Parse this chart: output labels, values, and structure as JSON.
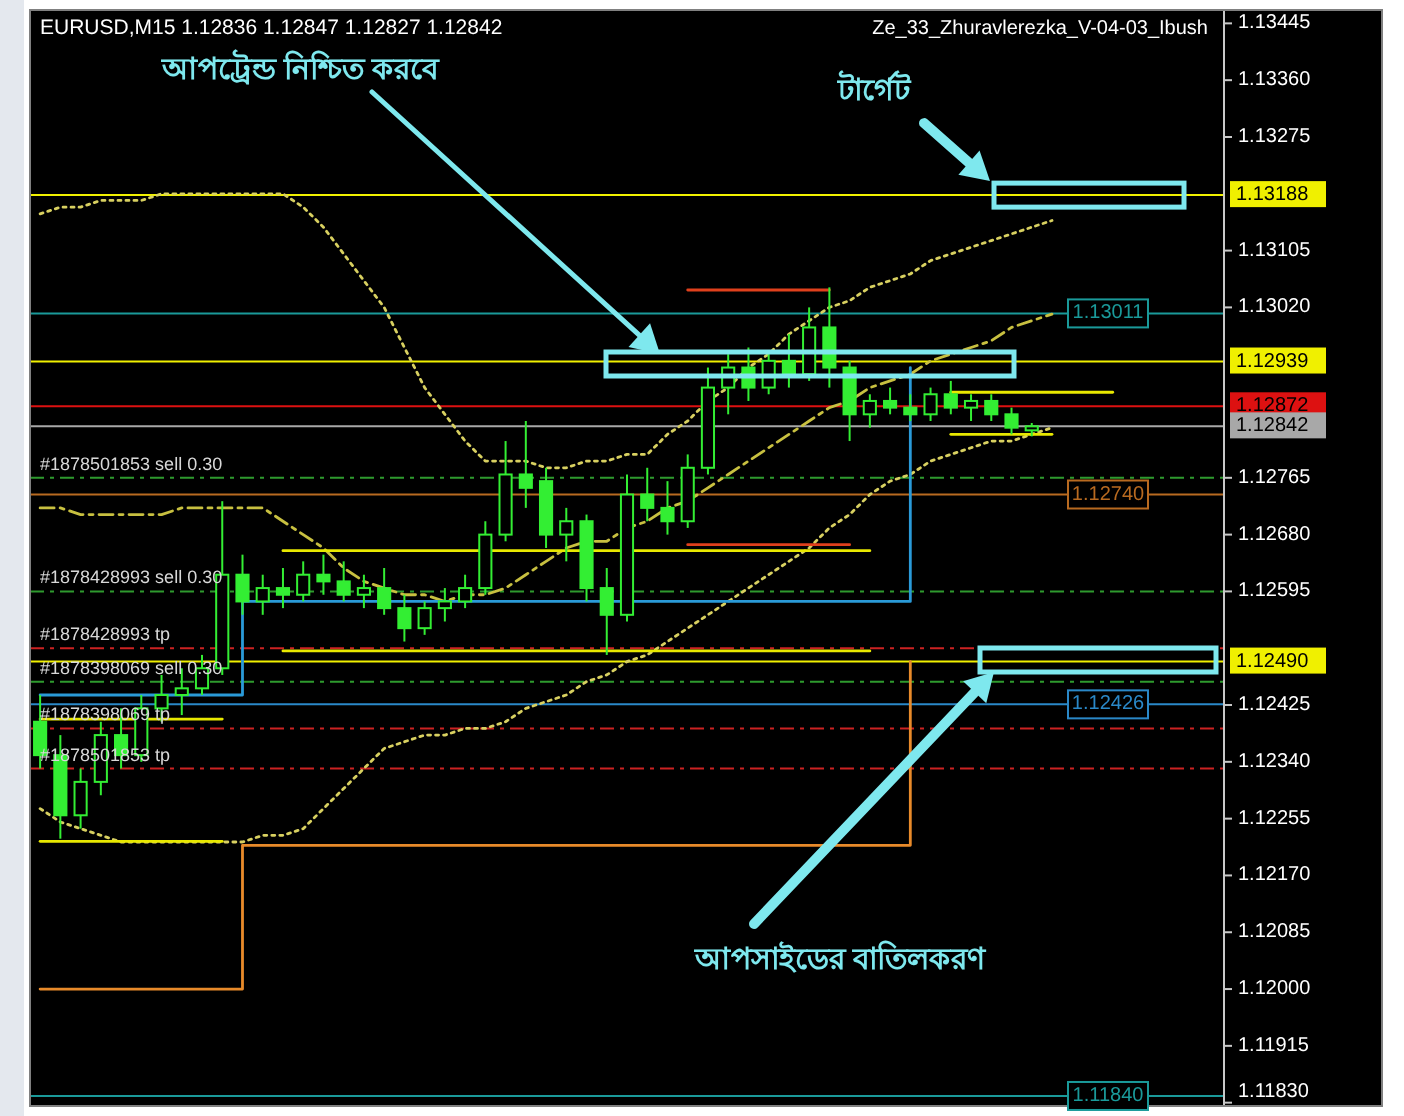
{
  "chart_data": {
    "type": "candlestick",
    "title": "EURUSD,M15  1.12836 1.12847 1.12827 1.12842",
    "categories": [
      null,
      null,
      null,
      null,
      null,
      null,
      null,
      null,
      null,
      null,
      null,
      null,
      null,
      null,
      null,
      null,
      null,
      null,
      null,
      null,
      null,
      null,
      null,
      null,
      null,
      null,
      null,
      null,
      null,
      null,
      null,
      null,
      null,
      null,
      null,
      null,
      null,
      null,
      null,
      null,
      null,
      null,
      null,
      null,
      null,
      null,
      null,
      null,
      null,
      null,
      null,
      null,
      null,
      null,
      null,
      null,
      null,
      null,
      null
    ],
    "ylim": [
      1.11825,
      1.13465
    ],
    "yticks": [
      {
        "value": 1.13445,
        "label": "1.13445"
      },
      {
        "value": 1.1336,
        "label": "1.13360"
      },
      {
        "value": 1.13275,
        "label": "1.13275"
      },
      {
        "value": 1.13105,
        "label": "1.13105"
      },
      {
        "value": 1.1302,
        "label": "1.13020"
      },
      {
        "value": 1.12765,
        "label": "1.12765"
      },
      {
        "value": 1.1268,
        "label": "1.12680"
      },
      {
        "value": 1.12595,
        "label": "1.12595"
      },
      {
        "value": 1.12425,
        "label": "1.12425"
      },
      {
        "value": 1.1234,
        "label": "1.12340"
      },
      {
        "value": 1.12255,
        "label": "1.12255"
      },
      {
        "value": 1.1217,
        "label": "1.12170"
      },
      {
        "value": 1.12085,
        "label": "1.12085"
      },
      {
        "value": 1.12,
        "label": "1.12000"
      },
      {
        "value": 1.11915,
        "label": "1.11915"
      },
      {
        "value": 1.1183,
        "label": "1.11830"
      }
    ],
    "tick_labels": "y",
    "grid": false,
    "series": [
      {
        "type": "candlestick",
        "color": "#33ee33",
        "ohlc": [
          [
            1.124,
            1.1244,
            1.1233,
            1.1235
          ],
          [
            1.1235,
            1.1238,
            1.12225,
            1.1226
          ],
          [
            1.1226,
            1.1233,
            1.1224,
            1.1231
          ],
          [
            1.1231,
            1.124,
            1.1229,
            1.1238
          ],
          [
            1.1238,
            1.1242,
            1.1233,
            1.1235
          ],
          [
            1.1235,
            1.1244,
            1.1234,
            1.1242
          ],
          [
            1.1242,
            1.1247,
            1.124,
            1.1244
          ],
          [
            1.1244,
            1.1248,
            1.1241,
            1.1245
          ],
          [
            1.1245,
            1.125,
            1.1244,
            1.1248
          ],
          [
            1.1248,
            1.1273,
            1.1247,
            1.1262
          ],
          [
            1.1262,
            1.1265,
            1.1256,
            1.1258
          ],
          [
            1.1258,
            1.1262,
            1.1256,
            1.126
          ],
          [
            1.126,
            1.1263,
            1.1257,
            1.1259
          ],
          [
            1.1259,
            1.1264,
            1.1258,
            1.1262
          ],
          [
            1.1262,
            1.1265,
            1.1259,
            1.1261
          ],
          [
            1.1261,
            1.1264,
            1.1258,
            1.1259
          ],
          [
            1.1259,
            1.1262,
            1.1257,
            1.126
          ],
          [
            1.126,
            1.1263,
            1.1256,
            1.1257
          ],
          [
            1.1257,
            1.1259,
            1.1252,
            1.1254
          ],
          [
            1.1254,
            1.1258,
            1.1253,
            1.1257
          ],
          [
            1.1257,
            1.126,
            1.1255,
            1.1258
          ],
          [
            1.1258,
            1.1262,
            1.1257,
            1.126
          ],
          [
            1.126,
            1.127,
            1.1259,
            1.1268
          ],
          [
            1.1268,
            1.1282,
            1.1267,
            1.1277
          ],
          [
            1.1277,
            1.1285,
            1.1272,
            1.1275
          ],
          [
            1.1276,
            1.1278,
            1.1266,
            1.1268
          ],
          [
            1.1268,
            1.1272,
            1.1264,
            1.127
          ],
          [
            1.127,
            1.1271,
            1.1258,
            1.126
          ],
          [
            1.126,
            1.1263,
            1.125,
            1.1256
          ],
          [
            1.1256,
            1.1277,
            1.1255,
            1.1274
          ],
          [
            1.1274,
            1.1278,
            1.127,
            1.1272
          ],
          [
            1.1272,
            1.1276,
            1.1268,
            1.127
          ],
          [
            1.127,
            1.128,
            1.1269,
            1.1278
          ],
          [
            1.1278,
            1.1293,
            1.1277,
            1.129
          ],
          [
            1.129,
            1.1295,
            1.1286,
            1.1293
          ],
          [
            1.1293,
            1.1296,
            1.1288,
            1.129
          ],
          [
            1.129,
            1.1295,
            1.1289,
            1.1294
          ],
          [
            1.1294,
            1.1298,
            1.129,
            1.1292
          ],
          [
            1.1292,
            1.1302,
            1.1291,
            1.1299
          ],
          [
            1.1299,
            1.1305,
            1.129,
            1.1293
          ],
          [
            1.1293,
            1.1294,
            1.1282,
            1.1286
          ],
          [
            1.1286,
            1.1289,
            1.1284,
            1.1288
          ],
          [
            1.1288,
            1.129,
            1.1286,
            1.1287
          ],
          [
            1.1287,
            1.1289,
            1.1285,
            1.1286
          ],
          [
            1.1286,
            1.129,
            1.1285,
            1.1289
          ],
          [
            1.1289,
            1.1291,
            1.1286,
            1.1287
          ],
          [
            1.1287,
            1.1289,
            1.1285,
            1.1288
          ],
          [
            1.1288,
            1.1289,
            1.1285,
            1.1286
          ],
          [
            1.1286,
            1.1287,
            1.1283,
            1.1284
          ],
          [
            1.12836,
            1.12847,
            1.12827,
            1.12842
          ],
          null,
          null,
          null,
          null,
          null,
          null,
          null,
          null,
          null
        ]
      },
      {
        "type": "line",
        "color": "#d8d060",
        "line_style": "dotted",
        "values": [
          1.1316,
          1.1317,
          1.1317,
          1.1318,
          1.1318,
          1.1318,
          1.1319,
          1.1319,
          1.1319,
          1.1319,
          1.1319,
          1.1319,
          1.1319,
          1.1317,
          1.1314,
          1.131,
          1.1306,
          1.1302,
          1.1296,
          1.129,
          1.1286,
          1.1282,
          1.1279,
          1.1279,
          1.1279,
          1.1278,
          1.1278,
          1.1279,
          1.1279,
          1.128,
          1.128,
          1.1283,
          1.1285,
          1.1288,
          1.129,
          1.1293,
          1.1295,
          1.1298,
          1.13,
          1.1302,
          1.1303,
          1.1305,
          1.1306,
          1.1307,
          1.1309,
          1.131,
          1.1311,
          1.1312,
          1.1313,
          1.1314,
          1.1315,
          null,
          null,
          null,
          null,
          null,
          null,
          null,
          null
        ]
      },
      {
        "type": "line",
        "color": "#c8c040",
        "line_style": "dashed",
        "values": [
          1.1272,
          1.1272,
          1.1271,
          1.1271,
          1.1271,
          1.1271,
          1.1271,
          1.1272,
          1.1272,
          1.1272,
          1.1272,
          1.1272,
          1.127,
          1.1268,
          1.1266,
          1.1263,
          1.1261,
          1.126,
          1.1259,
          1.1259,
          1.1258,
          1.1259,
          1.1259,
          1.126,
          1.1262,
          1.1264,
          1.1266,
          1.1267,
          1.1267,
          1.1269,
          1.127,
          1.1272,
          1.1273,
          1.1275,
          1.1277,
          1.1279,
          1.1281,
          1.1283,
          1.1285,
          1.1287,
          1.1288,
          1.129,
          1.1291,
          1.1292,
          1.1294,
          1.1295,
          1.1296,
          1.1297,
          1.1299,
          1.13,
          1.1301,
          null,
          null,
          null,
          null,
          null,
          null,
          null,
          null
        ]
      },
      {
        "type": "line",
        "color": "#d8d060",
        "line_style": "dotted",
        "values": [
          1.1227,
          1.1225,
          1.1224,
          1.1223,
          1.1222,
          1.1222,
          1.1222,
          1.1222,
          1.1222,
          1.1222,
          1.1222,
          1.1223,
          1.1223,
          1.1224,
          1.1227,
          1.123,
          1.1233,
          1.1236,
          1.1237,
          1.1238,
          1.1238,
          1.1239,
          1.1239,
          1.124,
          1.1242,
          1.1243,
          1.1244,
          1.1246,
          1.1247,
          1.1249,
          1.125,
          1.1252,
          1.1254,
          1.1256,
          1.1258,
          1.126,
          1.1262,
          1.1264,
          1.1266,
          1.1269,
          1.1271,
          1.1274,
          1.1276,
          1.1277,
          1.1279,
          1.128,
          1.1281,
          1.1282,
          1.1282,
          1.1283,
          1.1284,
          null,
          null,
          null,
          null,
          null,
          null,
          null,
          null
        ]
      },
      {
        "type": "step",
        "color": "#e88a2a",
        "values": [
          1.12,
          1.12,
          1.12,
          1.12,
          1.12,
          1.12,
          1.12,
          1.12,
          1.12,
          1.12,
          1.12215,
          1.12215,
          1.12215,
          1.12215,
          1.12215,
          1.12215,
          1.12215,
          1.12215,
          1.12215,
          1.12215,
          1.12215,
          1.12215,
          1.12215,
          1.12215,
          1.12215,
          1.12215,
          1.12215,
          1.12215,
          1.12215,
          1.12215,
          1.12215,
          1.12215,
          1.12215,
          1.12215,
          1.12215,
          1.12215,
          1.12215,
          1.12215,
          1.12215,
          1.12215,
          1.12215,
          1.12215,
          1.12215,
          1.1249,
          null,
          null,
          null,
          null,
          null,
          null,
          null,
          null,
          null,
          null,
          null,
          null,
          null,
          null,
          null
        ]
      },
      {
        "type": "step",
        "color": "#2a9ad8",
        "values": [
          1.1244,
          1.1244,
          1.1244,
          1.1244,
          1.1244,
          1.1244,
          1.1244,
          1.1244,
          1.1244,
          1.1244,
          1.1258,
          1.1258,
          1.1258,
          1.1258,
          1.1258,
          1.1258,
          1.1258,
          1.1258,
          1.1258,
          1.1258,
          1.1258,
          1.1258,
          1.1258,
          1.1258,
          1.1258,
          1.1258,
          1.1258,
          1.1258,
          1.1258,
          1.1258,
          1.1258,
          1.1258,
          1.1258,
          1.1258,
          1.1258,
          1.1258,
          1.1258,
          1.1258,
          1.1258,
          1.1258,
          1.1258,
          1.1258,
          1.1258,
          1.1293,
          null,
          null,
          null,
          null,
          null,
          null,
          null,
          null,
          null,
          null,
          null,
          null,
          null,
          null,
          null
        ]
      },
      {
        "type": "line",
        "color": "#e8e800",
        "values": [
          null,
          null,
          null,
          null,
          null,
          null,
          null,
          null,
          null,
          null,
          null,
          null,
          1.12656,
          1.12656,
          1.12656,
          1.12656,
          1.12656,
          1.12656,
          1.12656,
          1.12656,
          1.12656,
          1.12656,
          1.12656,
          1.12656,
          1.12656,
          1.12656,
          1.12656,
          1.12656,
          1.12656,
          1.12656,
          1.12656,
          1.12656,
          1.12656,
          1.12656,
          1.12656,
          1.12656,
          1.12656,
          1.12656,
          1.12656,
          1.12656,
          1.12656,
          1.12656,
          null,
          null,
          null,
          null,
          null,
          null,
          null,
          null,
          null,
          null,
          null,
          null,
          null,
          null,
          null,
          null,
          null
        ]
      },
      {
        "type": "line",
        "color": "#e8e800",
        "values": [
          null,
          null,
          null,
          null,
          null,
          null,
          null,
          null,
          null,
          null,
          null,
          null,
          1.12506,
          1.12506,
          1.12506,
          1.12506,
          1.12506,
          1.12506,
          1.12506,
          1.12506,
          1.12506,
          1.12506,
          1.12506,
          1.12506,
          1.12506,
          1.12506,
          1.12506,
          1.12506,
          1.12506,
          1.12506,
          1.12506,
          1.12506,
          1.12506,
          1.12506,
          1.12506,
          1.12506,
          1.12506,
          1.12506,
          1.12506,
          1.12506,
          1.12506,
          1.12506,
          null,
          null,
          null,
          null,
          null,
          null,
          null,
          null,
          null,
          null,
          null,
          null,
          null,
          null,
          null,
          null,
          null
        ]
      },
      {
        "type": "line",
        "color": "#e8e800",
        "values": [
          1.12221,
          1.12221,
          1.12221,
          1.12221,
          1.12221,
          1.12221,
          1.12221,
          1.12221,
          1.12221,
          1.12221,
          null,
          null,
          null,
          null,
          null,
          null,
          null,
          null,
          null,
          null,
          null,
          null,
          null,
          null,
          null,
          null,
          null,
          null,
          null,
          null,
          null,
          null,
          null,
          null,
          null,
          null,
          null,
          null,
          null,
          null,
          null,
          null,
          null,
          null,
          null,
          null,
          null,
          null,
          null,
          null,
          null,
          null,
          null,
          null,
          null,
          null,
          null,
          null,
          null
        ]
      },
      {
        "type": "line",
        "color": "#e8e800",
        "values": [
          1.12404,
          1.12404,
          1.12404,
          1.12404,
          1.12404,
          1.12404,
          1.12404,
          1.12404,
          1.12404,
          1.12404,
          null,
          null,
          null,
          null,
          null,
          null,
          null,
          null,
          null,
          null,
          null,
          null,
          null,
          null,
          null,
          null,
          null,
          null,
          null,
          null,
          null,
          null,
          null,
          null,
          null,
          null,
          null,
          null,
          null,
          null,
          null,
          null,
          null,
          null,
          null,
          null,
          null,
          null,
          null,
          null,
          null,
          null,
          null,
          null,
          null,
          null,
          null,
          null,
          null
        ]
      },
      {
        "type": "line",
        "color": "#e8e800",
        "values": [
          null,
          null,
          null,
          null,
          null,
          null,
          null,
          null,
          null,
          null,
          null,
          null,
          null,
          null,
          null,
          null,
          null,
          null,
          null,
          null,
          null,
          null,
          null,
          null,
          null,
          null,
          null,
          null,
          null,
          null,
          null,
          null,
          null,
          null,
          null,
          null,
          null,
          null,
          null,
          null,
          null,
          null,
          null,
          null,
          null,
          1.12893,
          1.12893,
          1.12893,
          1.12893,
          1.12893,
          1.12893,
          1.12893,
          1.12893,
          1.12893,
          null,
          null,
          null,
          null,
          null
        ]
      },
      {
        "type": "line",
        "color": "#e8e800",
        "values": [
          null,
          null,
          null,
          null,
          null,
          null,
          null,
          null,
          null,
          null,
          null,
          null,
          null,
          null,
          null,
          null,
          null,
          null,
          null,
          null,
          null,
          null,
          null,
          null,
          null,
          null,
          null,
          null,
          null,
          null,
          null,
          null,
          null,
          null,
          null,
          null,
          null,
          null,
          null,
          null,
          null,
          null,
          null,
          null,
          null,
          1.1283,
          1.1283,
          1.1283,
          1.1283,
          1.1283,
          1.1283,
          null,
          null,
          null,
          null,
          null,
          null,
          null,
          null
        ]
      },
      {
        "type": "line",
        "color": "#e0401c",
        "values": [
          null,
          null,
          null,
          null,
          null,
          null,
          null,
          null,
          null,
          null,
          null,
          null,
          null,
          null,
          null,
          null,
          null,
          null,
          null,
          null,
          null,
          null,
          null,
          null,
          null,
          null,
          null,
          null,
          null,
          null,
          null,
          null,
          1.13046,
          1.13046,
          1.13046,
          1.13046,
          1.13046,
          1.13046,
          1.13046,
          1.13046,
          null,
          null,
          null,
          null,
          null,
          null,
          null,
          null,
          null,
          null,
          null,
          null,
          null,
          null,
          null,
          null,
          null,
          null,
          null
        ]
      },
      {
        "type": "line",
        "color": "#e0401c",
        "values": [
          null,
          null,
          null,
          null,
          null,
          null,
          null,
          null,
          null,
          null,
          null,
          null,
          null,
          null,
          null,
          null,
          null,
          null,
          null,
          null,
          null,
          null,
          null,
          null,
          null,
          null,
          null,
          null,
          null,
          null,
          null,
          null,
          1.12665,
          1.12665,
          1.12665,
          1.12665,
          1.12665,
          1.12665,
          1.12665,
          1.12665,
          1.12665,
          null,
          null,
          null,
          null,
          null,
          null,
          null,
          null,
          null,
          null,
          null,
          null,
          null,
          null,
          null,
          null,
          null,
          null
        ]
      }
    ],
    "ref_lines": [
      {
        "axis": "y",
        "value": 1.13188,
        "label": "1.13188",
        "color": "#f0f000"
      },
      {
        "axis": "y",
        "value": 1.13011,
        "color": "#1a9a9a"
      },
      {
        "axis": "y",
        "value": 1.12939,
        "label": "1.12939",
        "color": "#f0f000"
      },
      {
        "axis": "y",
        "value": 1.12872,
        "label": "1.12872",
        "color": "#dd1111"
      },
      {
        "axis": "y",
        "value": 1.12842,
        "label": "1.12842",
        "color": "#a8a8a8"
      },
      {
        "axis": "y",
        "value": 1.12765,
        "color": "#2e9a2e",
        "line_style": "dashed"
      },
      {
        "axis": "y",
        "value": 1.1274,
        "color": "#b86a20"
      },
      {
        "axis": "y",
        "value": 1.12595,
        "color": "#2e9a2e",
        "line_style": "dashed"
      },
      {
        "axis": "y",
        "value": 1.1251,
        "color": "#cc2222",
        "line_style": "dashed"
      },
      {
        "axis": "y",
        "value": 1.1249,
        "label": "1.12490",
        "color": "#f0f000"
      },
      {
        "axis": "y",
        "value": 1.1246,
        "color": "#2e9a2e",
        "line_style": "dashed"
      },
      {
        "axis": "y",
        "value": 1.12426,
        "color": "#2a88c8"
      },
      {
        "axis": "y",
        "value": 1.1239,
        "color": "#cc2222",
        "line_style": "dashed"
      },
      {
        "axis": "y",
        "value": 1.1233,
        "color": "#cc2222",
        "line_style": "dashed"
      },
      {
        "axis": "y",
        "value": 1.1184,
        "color": "#1a9a9a"
      }
    ],
    "annotations": [
      "Ze_33_Zhuravlerezka_V-04-03_Ibush",
      "আপট্রেন্ড নিশ্চিত করবে",
      {
        "text": "টার্গেট",
        "y": 1.13188
      },
      "আপসাইডের বাতিলকরণ",
      {
        "text": "#1878501853 sell 0.30",
        "y": 1.12765
      },
      {
        "text": "#1878428993 sell 0.30",
        "y": 1.12595
      },
      {
        "text": "#1878428993 tp",
        "y": 1.1251
      },
      {
        "text": "#1878398069 sell 0.30",
        "y": 1.1246
      },
      {
        "text": "#1878398069 tp",
        "y": 1.1239
      },
      {
        "text": "#1878501853 tp",
        "y": 1.1233
      },
      {
        "text": "1.13011",
        "y": 1.13011
      },
      {
        "text": "1.12740",
        "y": 1.1274
      },
      {
        "text": "1.12426",
        "y": 1.12426
      },
      {
        "text": "1.11840",
        "y": 1.1184
      }
    ]
  }
}
